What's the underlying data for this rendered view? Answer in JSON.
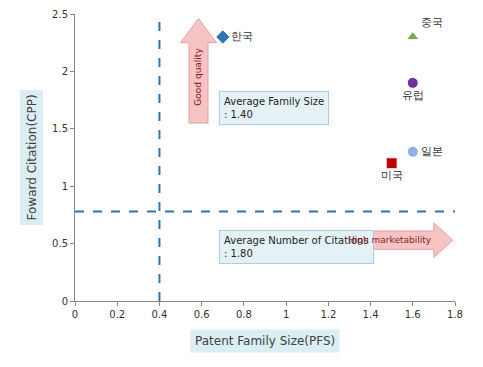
{
  "chart_data": {
    "type": "scatter",
    "x_label": "Patent Family Size(PFS)",
    "y_label": "Foward Citation(CPP)",
    "series": [
      {
        "name": "한국",
        "color": "#2e75b6",
        "marker": "diamond",
        "x": [
          0.7
        ],
        "values": [
          2.3
        ]
      },
      {
        "name": "중국",
        "color": "#70ad47",
        "marker": "triangle-up",
        "x": [
          1.6
        ],
        "values": [
          2.3
        ]
      },
      {
        "name": "유럽",
        "color": "#7030a0",
        "marker": "circle",
        "x": [
          1.6
        ],
        "values": [
          1.9
        ]
      },
      {
        "name": "일본",
        "color": "#8fb4e3",
        "marker": "circle",
        "x": [
          1.6
        ],
        "values": [
          1.3
        ]
      },
      {
        "name": "미국",
        "color": "#c00000",
        "marker": "square",
        "x": [
          1.5
        ],
        "values": [
          1.2
        ]
      }
    ],
    "xlim": [
      0,
      1.8
    ],
    "xticks": [
      0,
      0.2,
      0.4,
      0.6,
      0.8,
      1,
      1.2,
      1.4,
      1.6,
      1.8
    ],
    "ylim": [
      0,
      2.5
    ],
    "yticks": [
      0,
      0.5,
      1,
      1.5,
      2,
      2.5
    ],
    "grid": false,
    "reference_lines": [
      {
        "axis": "x",
        "value": 0.4,
        "color": "#2e75b6",
        "line_style": "dashed"
      },
      {
        "axis": "y",
        "value": 0.78,
        "color": "#2e75b6",
        "line_style": "dashed"
      }
    ],
    "annotations": [
      [
        "Average Family Size",
        ": 1.40"
      ],
      [
        "Average Number of Citations",
        ": 1.80"
      ],
      [
        "Good quality"
      ],
      [
        "High marketability"
      ]
    ]
  }
}
